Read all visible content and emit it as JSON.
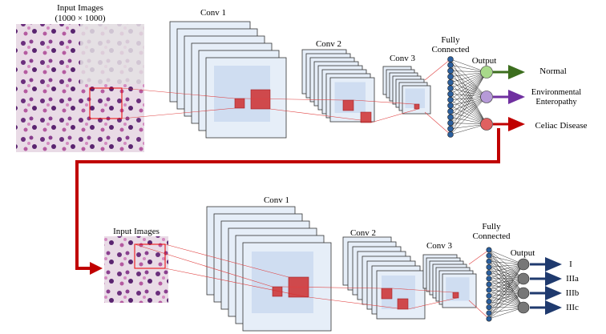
{
  "top": {
    "input_label": "Input Images",
    "input_size": "(1000 × 1000)",
    "conv1": "Conv 1",
    "conv2": "Conv 2",
    "conv3": "Conv 3",
    "fc": "Fully Connected",
    "output": "Output",
    "classes": [
      "Normal",
      "Environmental Enteropathy",
      "Celiac Disease"
    ]
  },
  "bottom": {
    "input_label": "Input Images",
    "conv1": "Conv 1",
    "conv2": "Conv 2",
    "conv3": "Conv 3",
    "fc": "Fully Connected",
    "output": "Output",
    "classes": [
      "I",
      "IIIa",
      "IIIb",
      "IIIc"
    ]
  }
}
